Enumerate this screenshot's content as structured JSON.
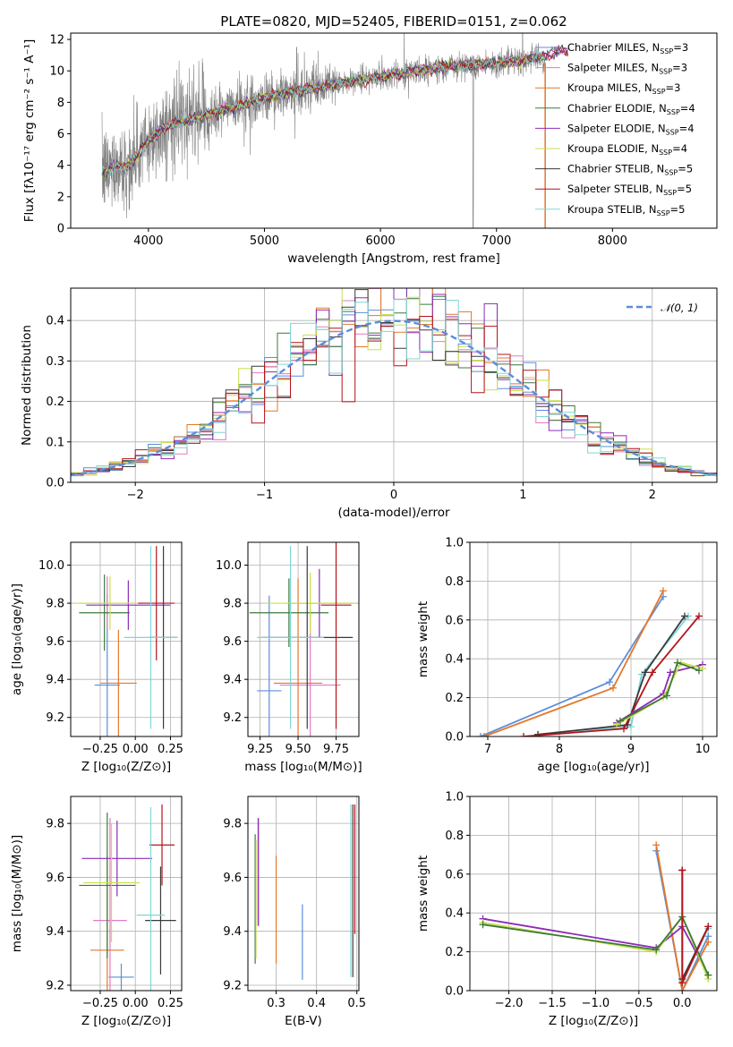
{
  "colors": {
    "chabrier_miles": "#5b8ddb",
    "salpeter_miles": "#e27ac6",
    "kroupa_miles": "#e3782c",
    "chabrier_elodie": "#3c7a3a",
    "salpeter_elodie": "#8b2bb5",
    "kroupa_elodie": "#c8e04a",
    "chabrier_stelib": "#3a3a3a",
    "salpeter_stelib": "#b3141c",
    "kroupa_stelib": "#7fd6d6",
    "data_gray": "#808080",
    "gaussian": "#5b8ddb"
  },
  "chart_data": [
    {
      "id": "spectrum",
      "type": "line",
      "title": "PLATE=0820, MJD=52405, FIBERID=0151, z=0.062",
      "xlabel": "wavelength [Angstrom, rest frame]",
      "ylabel": "Flux [fλ10⁻¹⁷ erg cm⁻² s⁻¹ A⁻¹]",
      "xlim": [
        3330,
        8900
      ],
      "ylim": [
        0,
        12.4
      ],
      "xticks": [
        4000,
        5000,
        6000,
        7000,
        8000
      ],
      "yticks": [
        0,
        2,
        4,
        6,
        8,
        10,
        12
      ],
      "legend_position": "right",
      "data_range": [
        3600,
        7420
      ],
      "model_range": [
        3600,
        7620
      ],
      "continuum": [
        [
          3600,
          3.5
        ],
        [
          3700,
          4.0
        ],
        [
          3800,
          3.8
        ],
        [
          3900,
          4.6
        ],
        [
          4000,
          5.6
        ],
        [
          4100,
          6.2
        ],
        [
          4200,
          6.6
        ],
        [
          4400,
          7.0
        ],
        [
          4600,
          7.4
        ],
        [
          4800,
          7.8
        ],
        [
          5000,
          8.3
        ],
        [
          5200,
          8.6
        ],
        [
          5500,
          9.0
        ],
        [
          5800,
          9.4
        ],
        [
          6000,
          9.6
        ],
        [
          6300,
          10.0
        ],
        [
          6600,
          10.3
        ],
        [
          7000,
          10.5
        ],
        [
          7200,
          10.6
        ],
        [
          7400,
          10.9
        ],
        [
          7550,
          11.3
        ],
        [
          7650,
          11.2
        ],
        [
          7800,
          11.0
        ],
        [
          8000,
          10.7
        ],
        [
          8200,
          10.4
        ],
        [
          8400,
          10.1
        ]
      ],
      "series": [
        {
          "name": "Chabrier MILES, N",
          "sub": "SSP",
          "suffix": "=3",
          "color": "#5b8ddb"
        },
        {
          "name": "Salpeter MILES, N",
          "sub": "SSP",
          "suffix": "=3",
          "color": "#e27ac6"
        },
        {
          "name": "Kroupa MILES, N",
          "sub": "SSP",
          "suffix": "=3",
          "color": "#e3782c"
        },
        {
          "name": "Chabrier ELODIE, N",
          "sub": "SSP",
          "suffix": "=4",
          "color": "#3c7a3a"
        },
        {
          "name": "Salpeter ELODIE, N",
          "sub": "SSP",
          "suffix": "=4",
          "color": "#8b2bb5"
        },
        {
          "name": "Kroupa ELODIE, N",
          "sub": "SSP",
          "suffix": "=4",
          "color": "#c8e04a"
        },
        {
          "name": "Chabrier STELIB, N",
          "sub": "SSP",
          "suffix": "=5",
          "color": "#3a3a3a"
        },
        {
          "name": "Salpeter STELIB, N",
          "sub": "SSP",
          "suffix": "=5",
          "color": "#b3141c"
        },
        {
          "name": "Kroupa STELIB, N",
          "sub": "SSP",
          "suffix": "=5",
          "color": "#7fd6d6"
        }
      ]
    },
    {
      "id": "residuals",
      "type": "line",
      "xlabel": "(data-model)/error",
      "ylabel": "Normed distribution",
      "xlim": [
        -2.5,
        2.5
      ],
      "ylim": [
        0,
        0.48
      ],
      "xticks": [
        -2,
        -1,
        0,
        1,
        2
      ],
      "yticks": [
        0.0,
        0.1,
        0.2,
        0.3,
        0.4
      ],
      "grid": true,
      "legend": "𝒩(0, 1)",
      "legend_position": "top-right",
      "bin_width": 0.1,
      "gaussian": {
        "mean": 0,
        "sigma": 1
      }
    },
    {
      "id": "age_vs_Z",
      "type": "scatter",
      "xlabel": "Z [log₁₀(Z/Z⊙)]",
      "ylabel": "age  [log₁₀(age/yr)]",
      "xlim": [
        -0.46,
        0.33
      ],
      "ylim": [
        9.1,
        10.12
      ],
      "xticks": [
        -0.25,
        0.0,
        0.25
      ],
      "yticks": [
        9.2,
        9.4,
        9.6,
        9.8,
        10.0
      ],
      "grid": true,
      "points": [
        {
          "x": -0.2,
          "y": 9.37,
          "xerr": 0.09,
          "yerr": 0.48,
          "color": "#5b8ddb"
        },
        {
          "x": -0.2,
          "y": 9.8,
          "xerr": 0.2,
          "yerr": 0.14,
          "color": "#e27ac6"
        },
        {
          "x": -0.12,
          "y": 9.38,
          "xerr": 0.13,
          "yerr": 0.28,
          "color": "#e3782c"
        },
        {
          "x": -0.22,
          "y": 9.75,
          "xerr": 0.18,
          "yerr": 0.2,
          "color": "#3c7a3a"
        },
        {
          "x": -0.05,
          "y": 9.79,
          "xerr": 0.3,
          "yerr": 0.13,
          "color": "#8b2bb5"
        },
        {
          "x": -0.18,
          "y": 9.8,
          "xerr": 0.24,
          "yerr": 0.14,
          "color": "#c8e04a"
        },
        {
          "x": 0.2,
          "y": 9.62,
          "xerr": 0.1,
          "yerr": 0.48,
          "color": "#3a3a3a"
        },
        {
          "x": 0.15,
          "y": 9.8,
          "xerr": 0.13,
          "yerr": 0.3,
          "color": "#b3141c"
        },
        {
          "x": 0.11,
          "y": 9.62,
          "xerr": 0.19,
          "yerr": 0.48,
          "color": "#7fd6d6"
        }
      ]
    },
    {
      "id": "age_vs_mass",
      "type": "scatter",
      "xlabel": "mass [log₁₀(M/M⊙)]",
      "xlim": [
        9.17,
        9.9
      ],
      "ylim": [
        9.1,
        10.12
      ],
      "xticks": [
        9.25,
        9.5,
        9.75
      ],
      "yticks": [
        9.2,
        9.4,
        9.6,
        9.8,
        10.0
      ],
      "grid": true,
      "points": [
        {
          "x": 9.31,
          "y": 9.34,
          "xerr": 0.08,
          "yerr": 0.5,
          "color": "#5b8ddb"
        },
        {
          "x": 9.58,
          "y": 9.37,
          "xerr": 0.2,
          "yerr": 0.4,
          "color": "#e27ac6"
        },
        {
          "x": 9.5,
          "y": 9.38,
          "xerr": 0.16,
          "yerr": 0.55,
          "color": "#e3782c"
        },
        {
          "x": 9.44,
          "y": 9.75,
          "xerr": 0.26,
          "yerr": 0.18,
          "color": "#3c7a3a"
        },
        {
          "x": 9.64,
          "y": 9.8,
          "xerr": 0.22,
          "yerr": 0.18,
          "color": "#8b2bb5"
        },
        {
          "x": 9.58,
          "y": 9.8,
          "xerr": 0.3,
          "yerr": 0.16,
          "color": "#c8e04a"
        },
        {
          "x": 9.56,
          "y": 9.62,
          "xerr": 0.3,
          "yerr": 0.48,
          "color": "#3a3a3a"
        },
        {
          "x": 9.75,
          "y": 9.79,
          "xerr": 0.1,
          "yerr": 0.65,
          "color": "#b3141c"
        },
        {
          "x": 9.45,
          "y": 9.62,
          "xerr": 0.22,
          "yerr": 0.48,
          "color": "#7fd6d6"
        }
      ]
    },
    {
      "id": "massweight_vs_age",
      "type": "line",
      "xlabel": "age  [log₁₀(age/yr)]",
      "ylabel": "mass weight",
      "xlim": [
        6.75,
        10.2
      ],
      "ylim": [
        0,
        1.0
      ],
      "xticks": [
        7,
        8,
        9,
        10
      ],
      "yticks": [
        0.0,
        0.2,
        0.4,
        0.6,
        0.8,
        1.0
      ],
      "grid": true,
      "series": [
        {
          "color": "#5b8ddb",
          "x": [
            6.9,
            8.7,
            9.45
          ],
          "y": [
            0.0,
            0.28,
            0.72
          ]
        },
        {
          "color": "#e3782c",
          "x": [
            6.95,
            8.75,
            9.45
          ],
          "y": [
            0.0,
            0.25,
            0.75
          ]
        },
        {
          "color": "#7fd6d6",
          "x": [
            7.7,
            9.0,
            9.15,
            9.8
          ],
          "y": [
            0.01,
            0.05,
            0.32,
            0.62
          ]
        },
        {
          "color": "#3a3a3a",
          "x": [
            7.7,
            8.95,
            9.2,
            9.75
          ],
          "y": [
            0.01,
            0.06,
            0.33,
            0.62
          ]
        },
        {
          "color": "#b3141c",
          "x": [
            7.5,
            8.9,
            9.3,
            9.95
          ],
          "y": [
            0.0,
            0.04,
            0.33,
            0.62
          ]
        },
        {
          "color": "#8b2bb5",
          "x": [
            8.8,
            9.45,
            9.55,
            10.0
          ],
          "y": [
            0.07,
            0.22,
            0.33,
            0.37
          ]
        },
        {
          "color": "#c8e04a",
          "x": [
            8.8,
            9.45,
            9.7,
            10.0
          ],
          "y": [
            0.06,
            0.2,
            0.38,
            0.35
          ]
        },
        {
          "color": "#3c7a3a",
          "x": [
            8.85,
            9.5,
            9.65,
            9.95
          ],
          "y": [
            0.08,
            0.21,
            0.38,
            0.34
          ]
        }
      ]
    },
    {
      "id": "mass_vs_Z",
      "type": "scatter",
      "xlabel": "Z [log₁₀(Z/Z⊙)]",
      "ylabel": "mass [log₁₀(M/M⊙)]",
      "xlim": [
        -0.46,
        0.33
      ],
      "ylim": [
        9.18,
        9.9
      ],
      "xticks": [
        -0.25,
        0.0,
        0.25
      ],
      "yticks": [
        9.2,
        9.4,
        9.6,
        9.8
      ],
      "grid": true,
      "points": [
        {
          "x": -0.1,
          "y": 9.23,
          "xerr": 0.09,
          "yerr": 0.05,
          "color": "#5b8ddb"
        },
        {
          "x": -0.18,
          "y": 9.44,
          "xerr": 0.12,
          "yerr": 0.38,
          "color": "#e27ac6"
        },
        {
          "x": -0.2,
          "y": 9.33,
          "xerr": 0.12,
          "yerr": 0.35,
          "color": "#e3782c"
        },
        {
          "x": -0.2,
          "y": 9.57,
          "xerr": 0.2,
          "yerr": 0.27,
          "color": "#3c7a3a"
        },
        {
          "x": -0.13,
          "y": 9.67,
          "xerr": 0.25,
          "yerr": 0.14,
          "color": "#8b2bb5"
        },
        {
          "x": -0.17,
          "y": 9.58,
          "xerr": 0.2,
          "yerr": 0.22,
          "color": "#c8e04a"
        },
        {
          "x": 0.18,
          "y": 9.44,
          "xerr": 0.11,
          "yerr": 0.2,
          "color": "#3a3a3a"
        },
        {
          "x": 0.19,
          "y": 9.72,
          "xerr": 0.09,
          "yerr": 0.15,
          "color": "#b3141c"
        },
        {
          "x": 0.11,
          "y": 9.46,
          "xerr": 0.1,
          "yerr": 0.4,
          "color": "#7fd6d6"
        }
      ]
    },
    {
      "id": "mass_vs_EBV",
      "type": "scatter",
      "xlabel": "E(B-V)",
      "xlim": [
        0.23,
        0.505
      ],
      "ylim": [
        9.18,
        9.9
      ],
      "xticks": [
        0.3,
        0.4,
        0.5
      ],
      "yticks": [
        9.2,
        9.4,
        9.6,
        9.8
      ],
      "grid": true,
      "points": [
        {
          "x": 0.365,
          "y": 9.36,
          "xerr": 0,
          "yerr": 0.14,
          "color": "#5b8ddb"
        },
        {
          "x": 0.255,
          "y": 9.62,
          "xerr": 0,
          "yerr": 0.2,
          "color": "#e27ac6"
        },
        {
          "x": 0.3,
          "y": 9.48,
          "xerr": 0,
          "yerr": 0.2,
          "color": "#e3782c"
        },
        {
          "x": 0.248,
          "y": 9.52,
          "xerr": 0,
          "yerr": 0.24,
          "color": "#3c7a3a"
        },
        {
          "x": 0.256,
          "y": 9.62,
          "xerr": 0,
          "yerr": 0.2,
          "color": "#8b2bb5"
        },
        {
          "x": 0.25,
          "y": 9.52,
          "xerr": 0,
          "yerr": 0.22,
          "color": "#c8e04a"
        },
        {
          "x": 0.49,
          "y": 9.55,
          "xerr": 0,
          "yerr": 0.32,
          "color": "#3a3a3a"
        },
        {
          "x": 0.495,
          "y": 9.63,
          "xerr": 0,
          "yerr": 0.24,
          "color": "#b3141c"
        },
        {
          "x": 0.485,
          "y": 9.55,
          "xerr": 0,
          "yerr": 0.32,
          "color": "#7fd6d6"
        }
      ]
    },
    {
      "id": "massweight_vs_Z",
      "type": "line",
      "xlabel": "Z [log₁₀(Z/Z⊙)]",
      "ylabel": "mass weight",
      "xlim": [
        -2.45,
        0.4
      ],
      "ylim": [
        0,
        1.0
      ],
      "xticks": [
        -2.0,
        -1.5,
        -1.0,
        -0.5,
        0.0
      ],
      "yticks": [
        0.0,
        0.2,
        0.4,
        0.6,
        0.8,
        1.0
      ],
      "grid": true,
      "series": [
        {
          "color": "#5b8ddb",
          "x": [
            -0.3,
            0.0,
            0.3
          ],
          "y": [
            0.72,
            0.0,
            0.28
          ]
        },
        {
          "color": "#e3782c",
          "x": [
            -0.3,
            0.0,
            0.3
          ],
          "y": [
            0.75,
            0.0,
            0.25
          ]
        },
        {
          "color": "#8b2bb5",
          "x": [
            -2.3,
            -0.3,
            0.0,
            0.3
          ],
          "y": [
            0.37,
            0.22,
            0.33,
            0.08
          ]
        },
        {
          "color": "#c8e04a",
          "x": [
            -2.3,
            -0.3,
            0.0,
            0.3
          ],
          "y": [
            0.35,
            0.2,
            0.38,
            0.06
          ]
        },
        {
          "color": "#3c7a3a",
          "x": [
            -2.3,
            -0.3,
            0.0,
            0.3
          ],
          "y": [
            0.34,
            0.21,
            0.38,
            0.08
          ]
        },
        {
          "color": "#7fd6d6",
          "x": [
            0.0,
            0.0,
            0.3
          ],
          "y": [
            0.62,
            0.05,
            0.32
          ]
        },
        {
          "color": "#3a3a3a",
          "x": [
            0.0,
            0.0,
            0.3
          ],
          "y": [
            0.62,
            0.06,
            0.33
          ]
        },
        {
          "color": "#b3141c",
          "x": [
            0.0,
            0.0,
            0.3
          ],
          "y": [
            0.62,
            0.04,
            0.33
          ]
        }
      ]
    }
  ]
}
